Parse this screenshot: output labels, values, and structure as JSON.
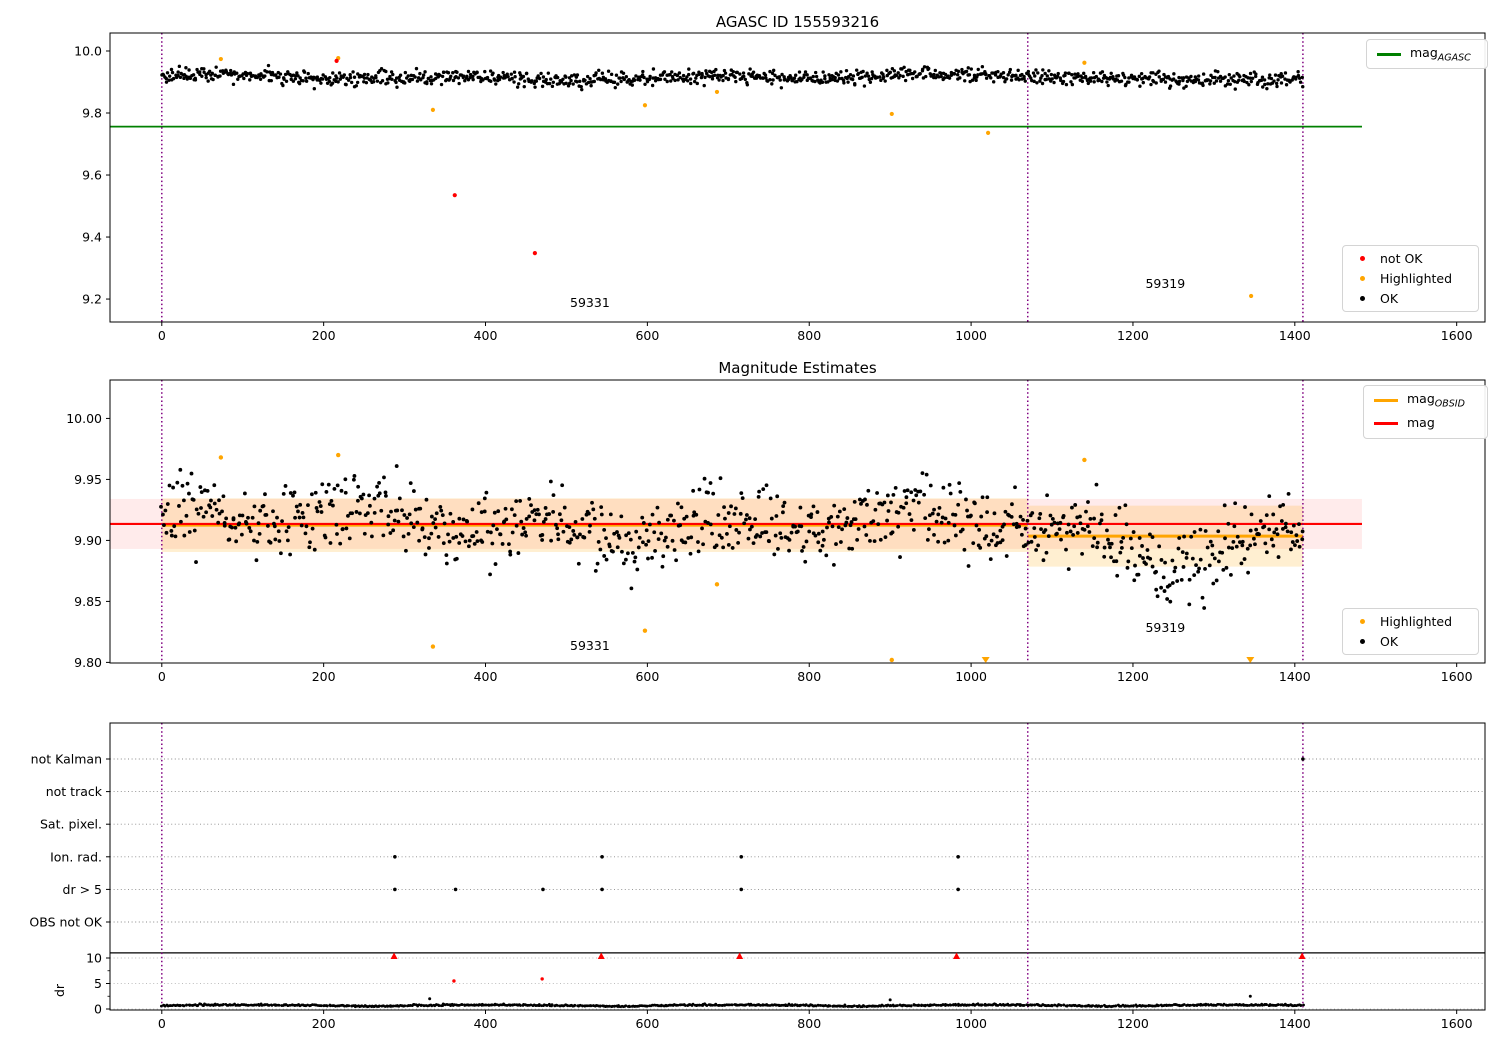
{
  "colors": {
    "ok": "#000000",
    "not_ok": "#ff0000",
    "highlighted": "#ffa500",
    "agasc_line": "#008000",
    "mag_line": "#ff0000",
    "obsid_line": "#ffa500",
    "vline": "#800080",
    "band_red": "rgba(255,0,0,0.08)",
    "band_orange": "rgba(255,165,0,0.18)",
    "grid_rows": "#8a8a8a",
    "grid_dr": "#bdbdbd"
  },
  "chart_data": [
    {
      "type": "scatter",
      "title": "AGASC ID 155593216",
      "ylim": [
        9.126,
        10.058
      ],
      "yticks": {
        "values": [
          10.0,
          9.8,
          9.6,
          9.4,
          9.2
        ],
        "labels": [
          "10.0",
          "9.8",
          "9.6",
          "9.4",
          "9.2"
        ]
      },
      "xticks": [
        0,
        200,
        400,
        600,
        800,
        1000,
        1200,
        1400,
        1600
      ],
      "xlim": [
        -64,
        1635
      ],
      "hline": {
        "y": 9.756,
        "x1": -64,
        "x2": 1483
      },
      "vlines": [
        0,
        1070,
        1410
      ],
      "legend_line": {
        "base": "mag",
        "sub": "AGASC"
      },
      "legend_points": [
        {
          "label": "not OK"
        },
        {
          "label": "Highlighted"
        },
        {
          "label": "OK"
        }
      ],
      "annotations": [
        {
          "text": "59331",
          "x": 529,
          "y": 9.175
        },
        {
          "text": "59319",
          "x": 1240,
          "y": 9.235
        }
      ],
      "highlighted_points": [
        [
          73,
          9.974
        ],
        [
          218,
          9.977
        ],
        [
          335,
          9.81
        ],
        [
          597,
          9.825
        ],
        [
          686,
          9.868
        ],
        [
          902,
          9.797
        ],
        [
          1021,
          9.736
        ],
        [
          1140,
          9.962
        ],
        [
          1346,
          9.21
        ]
      ],
      "not_ok_points": [
        [
          216,
          9.968
        ],
        [
          362,
          9.535
        ],
        [
          461,
          9.348
        ]
      ],
      "ok_generator": {
        "n": 1100,
        "seed": 42,
        "x1": 0,
        "x2": 1410,
        "mean": 9.9155,
        "sd": 0.0115,
        "w1": [
          0.006,
          47,
          0
        ],
        "w2": [
          0.005,
          178,
          2.1
        ],
        "dip": {
          "c": 1255,
          "w": 75,
          "a": 0.017
        },
        "clip": [
          9.868,
          9.967
        ]
      }
    },
    {
      "type": "scatter",
      "title": "Magnitude Estimates",
      "ylim": [
        9.7995,
        10.0315
      ],
      "yticks": {
        "values": [
          10.0,
          9.95,
          9.9,
          9.85,
          9.8
        ],
        "labels": [
          "10.00",
          "9.95",
          "9.90",
          "9.85",
          "9.80"
        ]
      },
      "xticks": [
        0,
        200,
        400,
        600,
        800,
        1000,
        1200,
        1400,
        1600
      ],
      "xlim": [
        -64,
        1635
      ],
      "mag_line": {
        "y": 9.9135,
        "x1": -64,
        "x2": 1483,
        "band": [
          9.893,
          9.934
        ]
      },
      "obsid_segments": [
        {
          "x1": 0,
          "x2": 1070,
          "y": 9.9125,
          "band": [
            9.8905,
            9.9345
          ]
        },
        {
          "x1": 1070,
          "x2": 1410,
          "y": 9.9035,
          "band": [
            9.8785,
            9.9285
          ]
        }
      ],
      "vlines": [
        0,
        1070,
        1410
      ],
      "legend_lines": [
        {
          "base": "mag",
          "sub": "OBSID"
        },
        {
          "base": "mag",
          "sub": ""
        }
      ],
      "legend_points": [
        {
          "label": "Highlighted"
        },
        {
          "label": "OK"
        }
      ],
      "annotations": [
        {
          "text": "59331",
          "x": 529,
          "y": 9.81
        },
        {
          "text": "59319",
          "x": 1240,
          "y": 9.825
        }
      ],
      "highlighted_points": [
        [
          73,
          9.968
        ],
        [
          218,
          9.97
        ],
        [
          335,
          9.813
        ],
        [
          597,
          9.826
        ],
        [
          686,
          9.864
        ],
        [
          902,
          9.802
        ],
        [
          1140,
          9.966
        ]
      ],
      "clipped_low_x": [
        1018,
        1345
      ],
      "ok_generator": {
        "n": 900,
        "seed": 7,
        "x1": 0,
        "x2": 1410,
        "mean": 9.9145,
        "mean2": 9.9065,
        "split": 1070,
        "sd": 0.0145,
        "w1": [
          0.008,
          36,
          1.0
        ],
        "w2": [
          0.006,
          121,
          0
        ],
        "dip": {
          "c": 1237,
          "w": 55,
          "a": 0.02
        },
        "clip": [
          9.803,
          9.968
        ]
      }
    },
    {
      "type": "scatter",
      "rows": [
        "not Kalman",
        "not track",
        "Sat. pixel.",
        "Ion. rad.",
        "dr > 5",
        "OBS not OK"
      ],
      "flag_points": {
        "Ion. rad.": [
          288,
          544,
          716,
          984
        ],
        "dr > 5": [
          288,
          363,
          471,
          544,
          716,
          984
        ],
        "not Kalman": [
          1410
        ]
      },
      "red_triangles_dr10": [
        287,
        543,
        714,
        982,
        1409
      ],
      "red_points": [
        {
          "x": 361,
          "dr": 5.5
        },
        {
          "x": 470,
          "dr": 5.9
        }
      ],
      "dr_axis": {
        "label": "dr",
        "ticks": [
          10,
          5,
          0
        ],
        "solid_hline_dr": 11
      },
      "dr_outliers": [
        {
          "x": 331,
          "dr": 2.0
        },
        {
          "x": 900,
          "dr": 1.8
        },
        {
          "x": 1345,
          "dr": 2.5
        }
      ],
      "vlines": [
        0,
        1070,
        1410
      ],
      "xticks": [
        0,
        200,
        400,
        600,
        800,
        1000,
        1200,
        1400,
        1600
      ],
      "xlim": [
        -64,
        1635
      ],
      "dr_generator": {
        "n": 900,
        "seed": 99,
        "x1": 0,
        "x2": 1410,
        "base": 0.42,
        "wamp": 0.28,
        "wper": 97,
        "wph": 0.5,
        "noise": 0.13,
        "clip": [
          0.12,
          1.55
        ]
      }
    }
  ]
}
